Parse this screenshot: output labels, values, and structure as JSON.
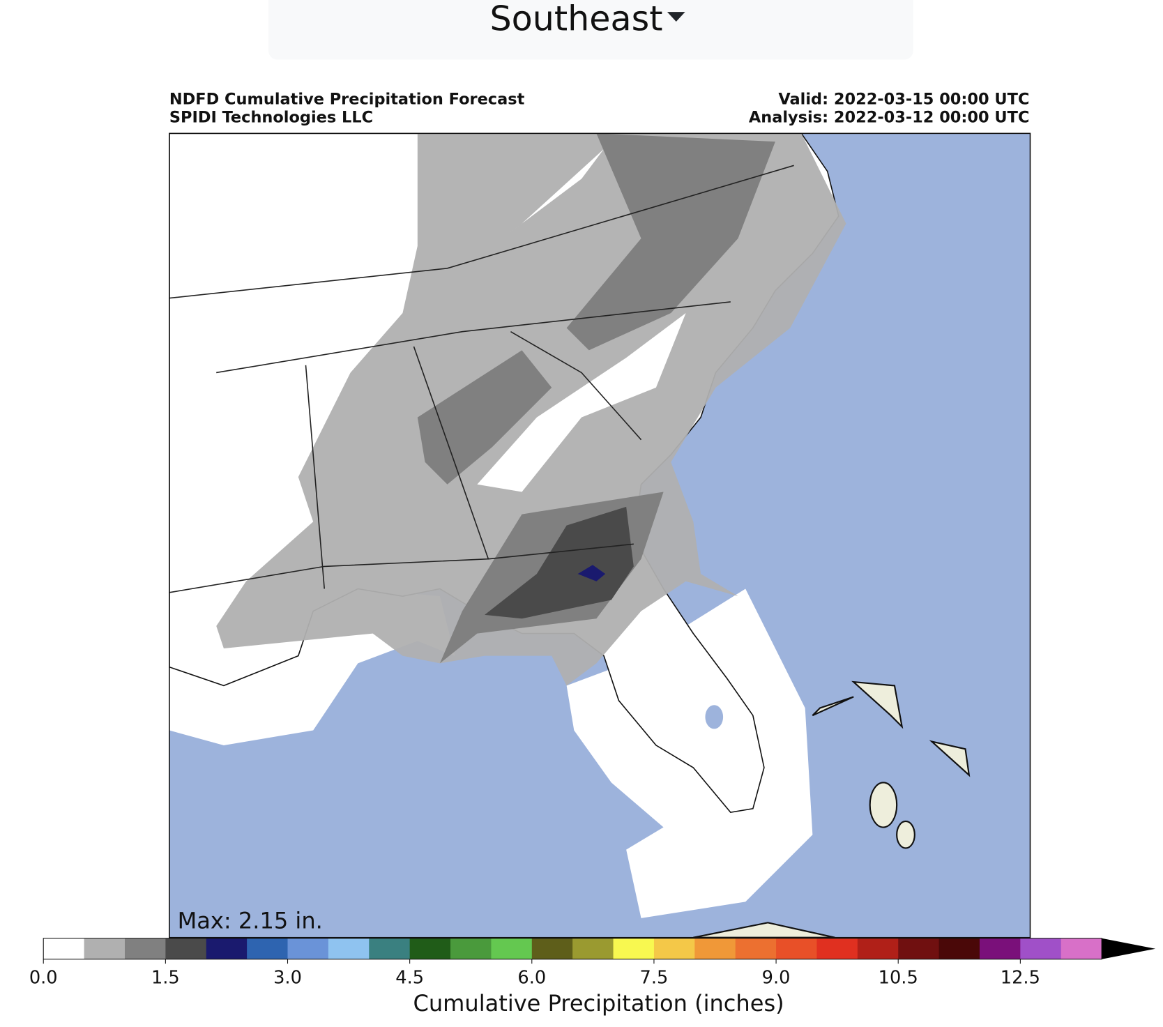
{
  "header": {
    "region": "Southeast"
  },
  "map": {
    "title_left": [
      "NDFD Cumulative Precipitation Forecast",
      "SPIDI Technologies LLC"
    ],
    "title_right": [
      "Valid: 2022-03-15 00:00 UTC",
      "Analysis: 2022-03-12 00:00 UTC"
    ],
    "max_label": "Max: 2.15 in."
  },
  "colorbar": {
    "label": "Cumulative Precipitation (inches)",
    "levels": [
      0,
      0.5,
      1,
      1.5,
      2,
      2.5,
      3,
      3.5,
      4,
      4.5,
      5,
      5.5,
      6,
      6.5,
      7,
      7.5,
      8,
      8.5,
      9,
      9.5,
      10,
      10.5,
      11,
      12,
      12.5,
      13,
      14
    ],
    "colors": [
      "#ffffff",
      "#b0b0b0",
      "#808080",
      "#4a4a4a",
      "#1a1a6e",
      "#2e64b0",
      "#6a93d8",
      "#8fc3f0",
      "#3a8080",
      "#205c18",
      "#4a9a3c",
      "#64c850",
      "#5e5e1a",
      "#9a9a30",
      "#f8f850",
      "#f4c848",
      "#f09838",
      "#ec7030",
      "#e85028",
      "#e03020",
      "#b02018",
      "#701010",
      "#4a0808",
      "#7a107a",
      "#a050c8",
      "#d870c8"
    ],
    "extend": "max",
    "extend_color": "#000000",
    "xticks": [
      {
        "value": 0,
        "label": "0.0"
      },
      1.5,
      {
        "value": 3,
        "label": "3.0"
      },
      4.5,
      {
        "value": 6,
        "label": "6.0"
      },
      7.5,
      {
        "value": 9,
        "label": "9.0"
      },
      10.5,
      12.5
    ]
  }
}
